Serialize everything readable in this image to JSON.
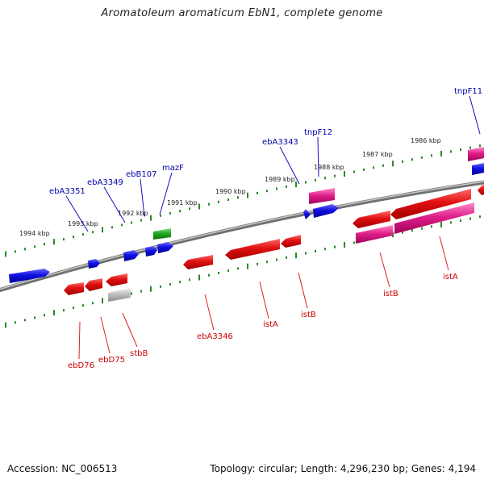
{
  "title": "Aromatoleum aromaticum EbN1, complete genome",
  "footer": {
    "accession": "Accession: NC_006513",
    "topology": "Topology: circular; Length: 4,296,230 bp; Genes: 4,194"
  },
  "colors": {
    "forward_gene": "#1010e0",
    "reverse_gene": "#e01010",
    "mobile_element": "#e0208a",
    "rna_gene": "#22aa22",
    "pseudo_gene": "#bbbbbb",
    "tick": "#2a8a2a",
    "backbone": "#808080",
    "forward_label": "#0000aa",
    "reverse_label": "#cc0000"
  },
  "kbp_labels": [
    "1994 kbp",
    "1993 kbp",
    "1992 kbp",
    "1991 kbp",
    "1990 kbp",
    "1989 kbp",
    "1988 kbp",
    "1987 kbp",
    "1986 kbp"
  ],
  "forward_labels": [
    "ebA3351",
    "ebA3349",
    "ebB107",
    "mazF",
    "ebA3343",
    "tnpF12",
    "tnpF11"
  ],
  "reverse_labels": [
    "ebD76",
    "ebD75",
    "stbB",
    "ebA3346",
    "istA",
    "istB",
    "istB",
    "istA"
  ]
}
